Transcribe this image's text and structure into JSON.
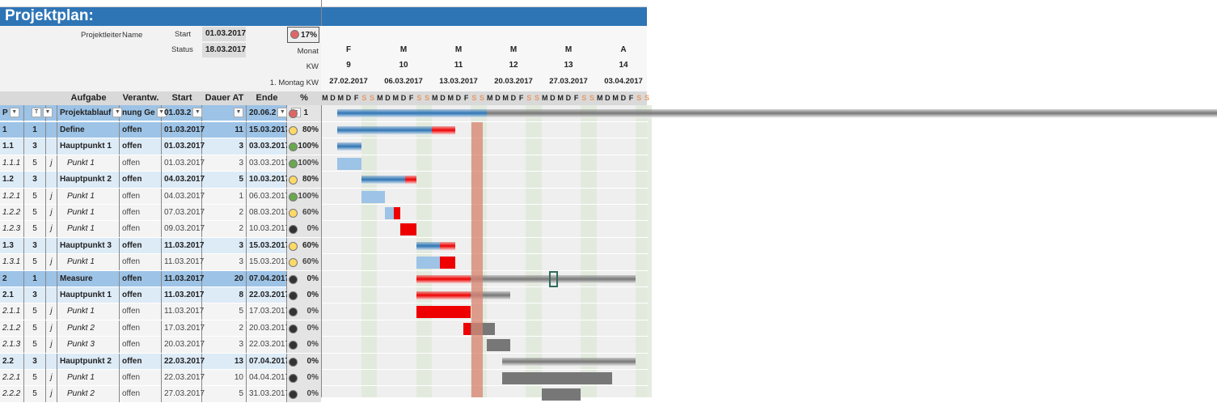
{
  "title": "Projektplan:",
  "info": {
    "leader_label": "Projektleiter",
    "leader_value": "Name",
    "start_label": "Start",
    "start_value": "01.03.2017",
    "status_label": "Status",
    "status_value": "18.03.2017",
    "overall_percent": "17%",
    "overall_status_color": "#e06666",
    "month_label": "Monat",
    "kw_label": "KW",
    "monday_label": "1. Montag KW"
  },
  "weeks": [
    {
      "month": "F",
      "kw": "9",
      "monday": "27.02.2017"
    },
    {
      "month": "M",
      "kw": "10",
      "monday": "06.03.2017"
    },
    {
      "month": "M",
      "kw": "11",
      "monday": "13.03.2017"
    },
    {
      "month": "M",
      "kw": "12",
      "monday": "20.03.2017"
    },
    {
      "month": "M",
      "kw": "13",
      "monday": "27.03.2017"
    },
    {
      "month": "A",
      "kw": "14",
      "monday": "03.04.2017"
    }
  ],
  "day_letters": [
    "M",
    "D",
    "M",
    "D",
    "F",
    "S",
    "S"
  ],
  "columns": {
    "task": "Aufgabe",
    "owner": "Verantw.",
    "start": "Start",
    "duration": "Dauer AT",
    "end": "Ende",
    "percent": "%"
  },
  "filter_row": {
    "id": "P",
    "task": "Projektablauf",
    "owner": "nung Ge",
    "start": "01.03.2",
    "end": "20.06.2",
    "percent": "1",
    "status": "red",
    "bar_start": "01.03.2017",
    "bar_end": "20.06.2017",
    "progress": 17
  },
  "today": "18.03.2017",
  "colors": {
    "title": "#2e75b6",
    "level1": "#9dc3e6",
    "level3": "#ddebf7",
    "done_summary": "#2e75b6",
    "done_task": "#9dc3e6",
    "overdue": "#ee0000",
    "future": "#777777",
    "today_line": "#d9826f",
    "red": "#e06666",
    "yellow": "#ffd966",
    "green": "#6aa84f",
    "black": "#333333"
  },
  "rows": [
    {
      "id": "1",
      "level": "1",
      "j": "",
      "task": "Define",
      "owner": "offen",
      "start": "01.03.2017",
      "duration": "11",
      "end": "15.03.2017",
      "status": "yellow",
      "percent": "80%"
    },
    {
      "id": "1.1",
      "level": "3",
      "j": "",
      "task": "Hauptpunkt 1",
      "owner": "offen",
      "start": "01.03.2017",
      "duration": "3",
      "end": "03.03.2017",
      "status": "green",
      "percent": "100%"
    },
    {
      "id": "1.1.1",
      "level": "5",
      "j": "j",
      "task": "Punkt 1",
      "owner": "offen",
      "start": "01.03.2017",
      "duration": "3",
      "end": "03.03.2017",
      "status": "green",
      "percent": "100%"
    },
    {
      "id": "1.2",
      "level": "3",
      "j": "",
      "task": "Hauptpunkt 2",
      "owner": "offen",
      "start": "04.03.2017",
      "duration": "5",
      "end": "10.03.2017",
      "status": "yellow",
      "percent": "80%"
    },
    {
      "id": "1.2.1",
      "level": "5",
      "j": "j",
      "task": "Punkt 1",
      "owner": "offen",
      "start": "04.03.2017",
      "duration": "1",
      "end": "06.03.2017",
      "status": "green",
      "percent": "100%"
    },
    {
      "id": "1.2.2",
      "level": "5",
      "j": "j",
      "task": "Punkt 1",
      "owner": "offen",
      "start": "07.03.2017",
      "duration": "2",
      "end": "08.03.2017",
      "status": "yellow",
      "percent": "60%"
    },
    {
      "id": "1.2.3",
      "level": "5",
      "j": "j",
      "task": "Punkt 1",
      "owner": "offen",
      "start": "09.03.2017",
      "duration": "2",
      "end": "10.03.2017",
      "status": "black",
      "percent": "0%"
    },
    {
      "id": "1.3",
      "level": "3",
      "j": "",
      "task": "Hauptpunkt 3",
      "owner": "offen",
      "start": "11.03.2017",
      "duration": "3",
      "end": "15.03.2017",
      "status": "yellow",
      "percent": "60%"
    },
    {
      "id": "1.3.1",
      "level": "5",
      "j": "j",
      "task": "Punkt 1",
      "owner": "offen",
      "start": "11.03.2017",
      "duration": "3",
      "end": "15.03.2017",
      "status": "yellow",
      "percent": "60%"
    },
    {
      "id": "2",
      "level": "1",
      "j": "",
      "task": "Measure",
      "owner": "offen",
      "start": "11.03.2017",
      "duration": "20",
      "end": "07.04.2017",
      "status": "black",
      "percent": "0%"
    },
    {
      "id": "2.1",
      "level": "3",
      "j": "",
      "task": "Hauptpunkt 1",
      "owner": "offen",
      "start": "11.03.2017",
      "duration": "8",
      "end": "22.03.2017",
      "status": "black",
      "percent": "0%"
    },
    {
      "id": "2.1.1",
      "level": "5",
      "j": "j",
      "task": "Punkt 1",
      "owner": "offen",
      "start": "11.03.2017",
      "duration": "5",
      "end": "17.03.2017",
      "status": "black",
      "percent": "0%"
    },
    {
      "id": "2.1.2",
      "level": "5",
      "j": "j",
      "task": "Punkt 2",
      "owner": "offen",
      "start": "17.03.2017",
      "duration": "2",
      "end": "20.03.2017",
      "status": "black",
      "percent": "0%"
    },
    {
      "id": "2.1.3",
      "level": "5",
      "j": "j",
      "task": "Punkt 3",
      "owner": "offen",
      "start": "20.03.2017",
      "duration": "3",
      "end": "22.03.2017",
      "status": "black",
      "percent": "0%"
    },
    {
      "id": "2.2",
      "level": "3",
      "j": "",
      "task": "Hauptpunkt 2",
      "owner": "offen",
      "start": "22.03.2017",
      "duration": "13",
      "end": "07.04.2017",
      "status": "black",
      "percent": "0%"
    },
    {
      "id": "2.2.1",
      "level": "5",
      "j": "j",
      "task": "Punkt 1",
      "owner": "offen",
      "start": "22.03.2017",
      "duration": "10",
      "end": "04.04.2017",
      "status": "black",
      "percent": "0%"
    },
    {
      "id": "2.2.2",
      "level": "5",
      "j": "j",
      "task": "Punkt 2",
      "owner": "offen",
      "start": "27.03.2017",
      "duration": "5",
      "end": "31.03.2017",
      "status": "black",
      "percent": "0%"
    }
  ]
}
